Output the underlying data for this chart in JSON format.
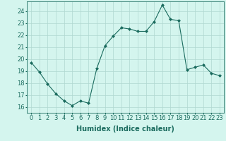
{
  "x": [
    0,
    1,
    2,
    3,
    4,
    5,
    6,
    7,
    8,
    9,
    10,
    11,
    12,
    13,
    14,
    15,
    16,
    17,
    18,
    19,
    20,
    21,
    22,
    23
  ],
  "y": [
    19.7,
    18.9,
    17.9,
    17.1,
    16.5,
    16.1,
    16.5,
    16.3,
    19.2,
    21.1,
    21.9,
    22.6,
    22.5,
    22.3,
    22.3,
    23.1,
    24.5,
    23.3,
    23.2,
    19.1,
    19.3,
    19.5,
    18.8,
    18.6
  ],
  "line_color": "#1a6b5e",
  "marker": "D",
  "marker_size": 2.0,
  "bg_color": "#d4f5ee",
  "grid_color": "#b0d8d0",
  "xlabel": "Humidex (Indice chaleur)",
  "ylabel_ticks": [
    16,
    17,
    18,
    19,
    20,
    21,
    22,
    23,
    24
  ],
  "ylim": [
    15.5,
    24.8
  ],
  "xlim": [
    -0.5,
    23.5
  ],
  "xlabel_fontsize": 7,
  "tick_fontsize": 6
}
